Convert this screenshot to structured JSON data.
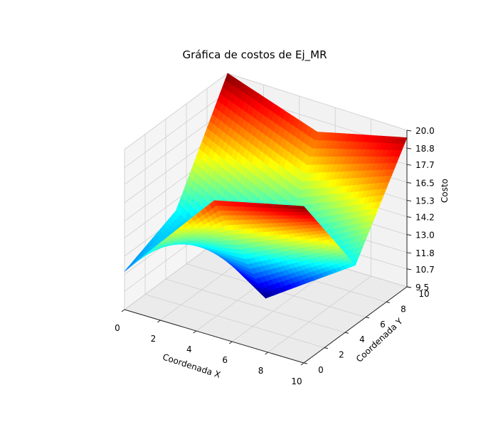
{
  "chart_data": {
    "type": "surface3d",
    "title": "Gráfica de costos de Ej_MR",
    "xlabel": "Coordenada X",
    "ylabel": "Coordenada Y",
    "zlabel": "Costo",
    "xlim": [
      0,
      10
    ],
    "ylim": [
      0,
      10
    ],
    "zlim": [
      9.5,
      20.0
    ],
    "x_ticks": [
      "0",
      "2",
      "4",
      "6",
      "8",
      "10"
    ],
    "y_ticks": [
      "0",
      "2",
      "4",
      "6",
      "8",
      "10"
    ],
    "z_ticks": [
      "9.5",
      "10.7",
      "11.8",
      "13.0",
      "14.2",
      "15.3",
      "16.5",
      "17.7",
      "18.8",
      "20.0"
    ],
    "colormap": "jet",
    "grid": true,
    "surface": {
      "x": [
        0,
        5,
        10
      ],
      "y": [
        0,
        5,
        10
      ],
      "z": [
        [
          12.0,
          18.5,
          20.0
        ],
        [
          13.5,
          9.5,
          13.5
        ],
        [
          20.0,
          18.0,
          19.5
        ]
      ]
    }
  }
}
